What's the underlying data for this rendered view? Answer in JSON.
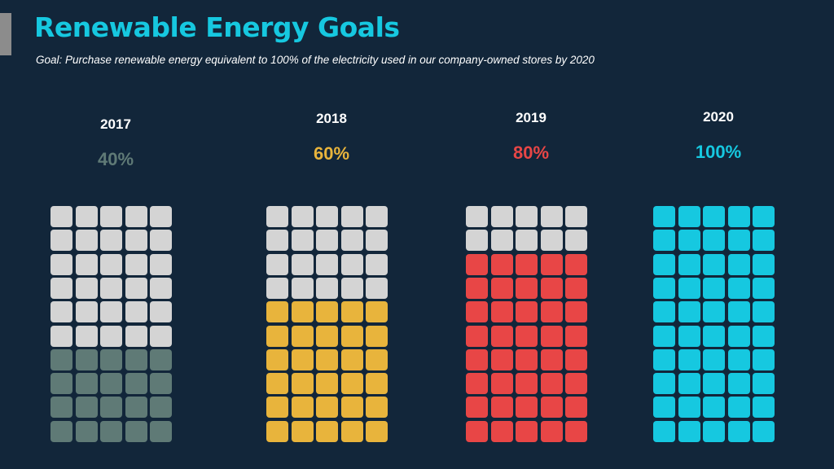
{
  "title": "Renewable Energy Goals",
  "subtitle": "Goal: Purchase renewable energy equivalent to 100% of the electricity used in our company-owned stores by 2020",
  "colors": {
    "background": "#12263a",
    "title": "#16c8e0",
    "empty_cell": "#d4d4d4"
  },
  "chart_data": {
    "type": "waffle",
    "grid": {
      "rows": 10,
      "cols": 5
    },
    "categories": [
      "2017",
      "2018",
      "2019",
      "2020"
    ],
    "values": [
      40,
      60,
      80,
      100
    ],
    "labels": [
      "40%",
      "60%",
      "80%",
      "100%"
    ],
    "colors": [
      "#5f7a76",
      "#e8b43c",
      "#e84646",
      "#16c8e0"
    ]
  }
}
